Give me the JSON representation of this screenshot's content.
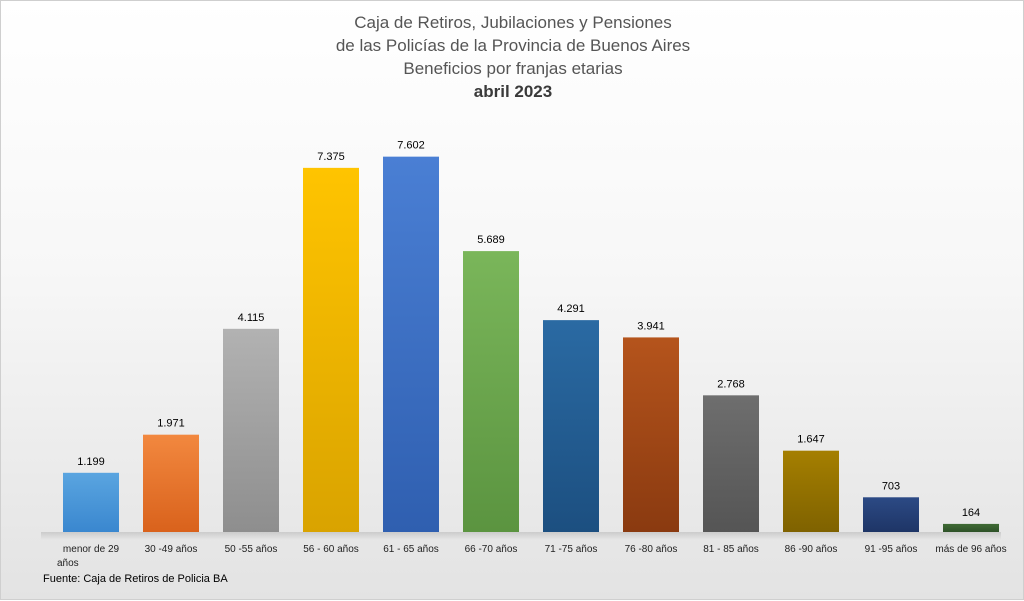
{
  "chart_data": {
    "type": "bar",
    "title_lines": [
      "Caja de Retiros, Jubilaciones y Pensiones",
      "de las Policías de la Provincia de Buenos Aires",
      "Beneficios por franjas etarias"
    ],
    "subtitle": "abril 2023",
    "categories": [
      [
        "menor de 29",
        "años"
      ],
      [
        "30 -49 años"
      ],
      [
        "50 -55 años"
      ],
      [
        "56 - 60 años"
      ],
      [
        "61 - 65 años"
      ],
      [
        "66 -70 años"
      ],
      [
        "71 -75 años"
      ],
      [
        "76 -80 años"
      ],
      [
        "81 - 85 años"
      ],
      [
        "86 -90 años"
      ],
      [
        "91 -95 años"
      ],
      [
        "más de 96 años"
      ]
    ],
    "values": [
      1199,
      1971,
      4115,
      7375,
      7602,
      5689,
      4291,
      3941,
      2768,
      1647,
      703,
      164
    ],
    "value_labels": [
      "1.199",
      "1.971",
      "4.115",
      "7.375",
      "7.602",
      "5.689",
      "4.291",
      "3.941",
      "2.768",
      "1.647",
      "703",
      "164"
    ],
    "colors": [
      [
        "#5aa5e0",
        "#3a87cf"
      ],
      [
        "#f2883f",
        "#d9621c"
      ],
      [
        "#b2b2b2",
        "#8e8e8e"
      ],
      [
        "#ffc400",
        "#d9a300"
      ],
      [
        "#4a7fd4",
        "#2f5fb0"
      ],
      [
        "#7ab65a",
        "#5b9440"
      ],
      [
        "#2a6aa3",
        "#1c4f80"
      ],
      [
        "#b5541c",
        "#8a3a10"
      ],
      [
        "#6e6e6e",
        "#555555"
      ],
      [
        "#a57f00",
        "#7f6200"
      ],
      [
        "#2c4a85",
        "#1e3566"
      ],
      [
        "#3f6b35",
        "#2e5128"
      ]
    ],
    "ylim": [
      0,
      8000
    ],
    "grid": false,
    "legend": "none"
  },
  "source": "Fuente: Caja de Retiros de Policia BA"
}
